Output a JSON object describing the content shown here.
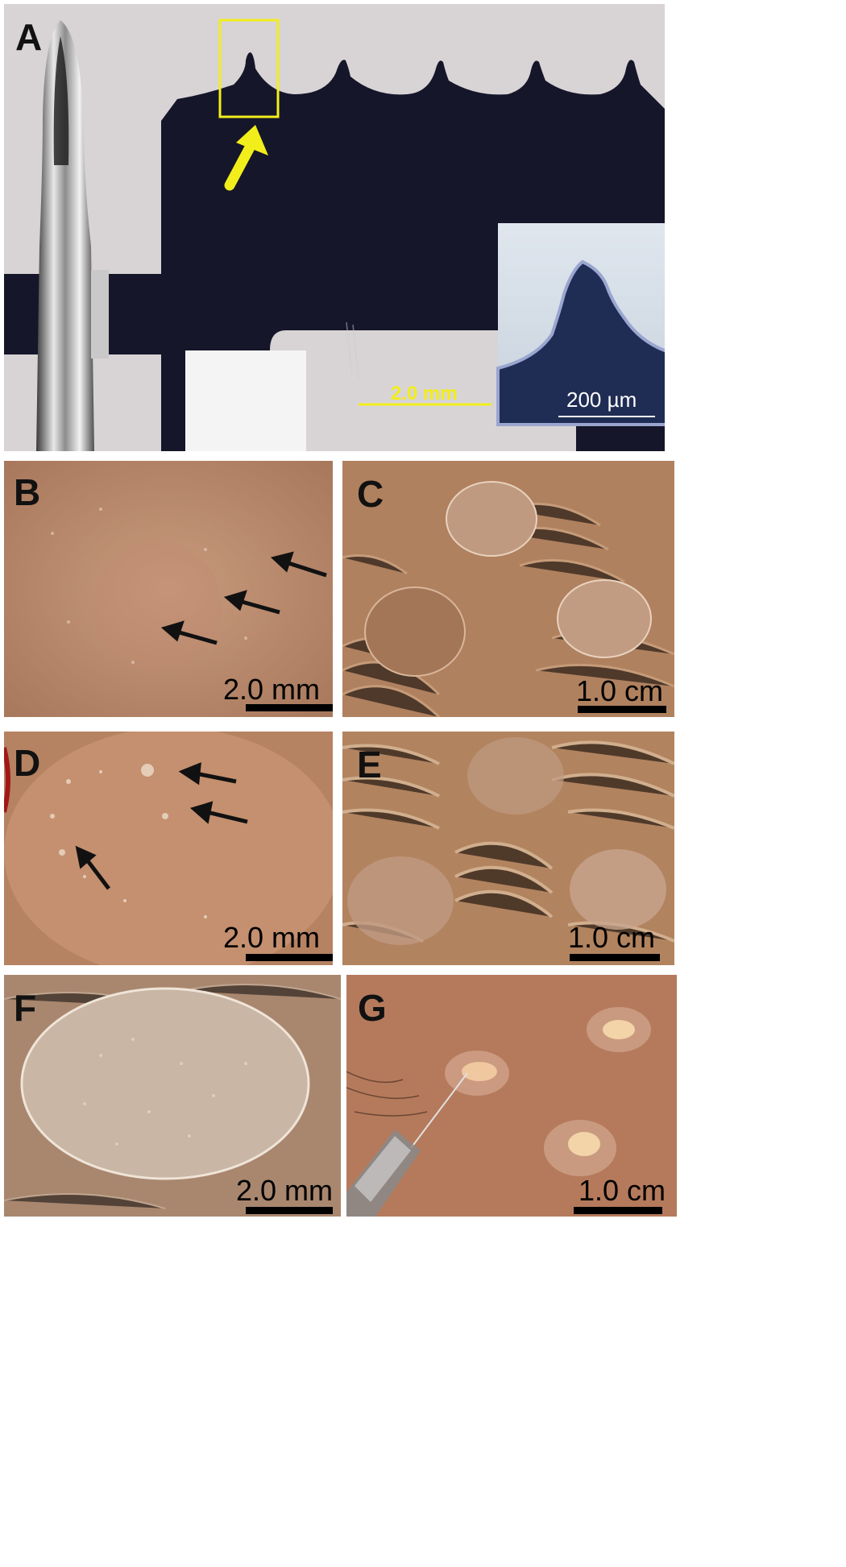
{
  "panels": [
    {
      "id": "A",
      "letter": "A",
      "scale": "2.0 mm",
      "inset_scale": "200 µm"
    },
    {
      "id": "B",
      "letter": "B",
      "scale": "2.0 mm"
    },
    {
      "id": "C",
      "letter": "C",
      "scale": "1.0 cm"
    },
    {
      "id": "D",
      "letter": "D",
      "scale": "2.0 mm"
    },
    {
      "id": "E",
      "letter": "E",
      "scale": "1.0 cm"
    },
    {
      "id": "F",
      "letter": "F",
      "scale": "2.0 mm"
    },
    {
      "id": "G",
      "letter": "G",
      "scale": "1.0 cm"
    }
  ],
  "colors": {
    "highlight": "#f2ee1c",
    "skin": "#c99b7a",
    "metal_sheet": "#16162a"
  }
}
